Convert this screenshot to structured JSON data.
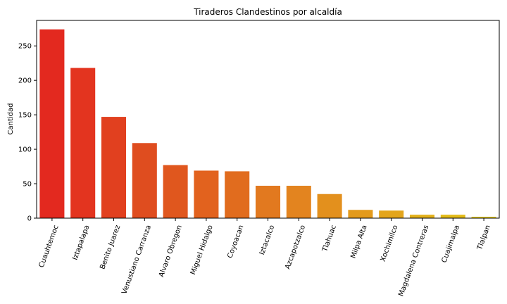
{
  "chart_data": {
    "type": "bar",
    "title": "Tiraderos Clandestinos por alcaldía",
    "xlabel": "",
    "ylabel": "Cantidad",
    "categories": [
      "Cuauhtemoc",
      "Iztapalapa",
      "Benito Juarez",
      "Venustiano Carranza",
      "Alvaro Obregon",
      "Miguel Hidalgo",
      "Coyoacan",
      "Iztacalco",
      "Azcapotzalco",
      "Tlahuac",
      "Milpa Alta",
      "Xochimilco",
      "Magdalena Contreras",
      "Cuajimalpa",
      "Tlalpan"
    ],
    "values": [
      274,
      218,
      147,
      109,
      77,
      69,
      68,
      47,
      47,
      35,
      12,
      11,
      5,
      5,
      2
    ],
    "colors": [
      "#e3291f",
      "#e3341f",
      "#e1401f",
      "#df4d1f",
      "#e0571e",
      "#e2621e",
      "#e16c1e",
      "#e2791f",
      "#e3841f",
      "#e3901d",
      "#e39a1c",
      "#e3a51c",
      "#e3b11b",
      "#e3bb18",
      "#e3c715"
    ],
    "yticks": [
      0,
      50,
      100,
      150,
      200,
      250
    ],
    "ylim": [
      0,
      287
    ],
    "grid": false,
    "legend": "none"
  }
}
